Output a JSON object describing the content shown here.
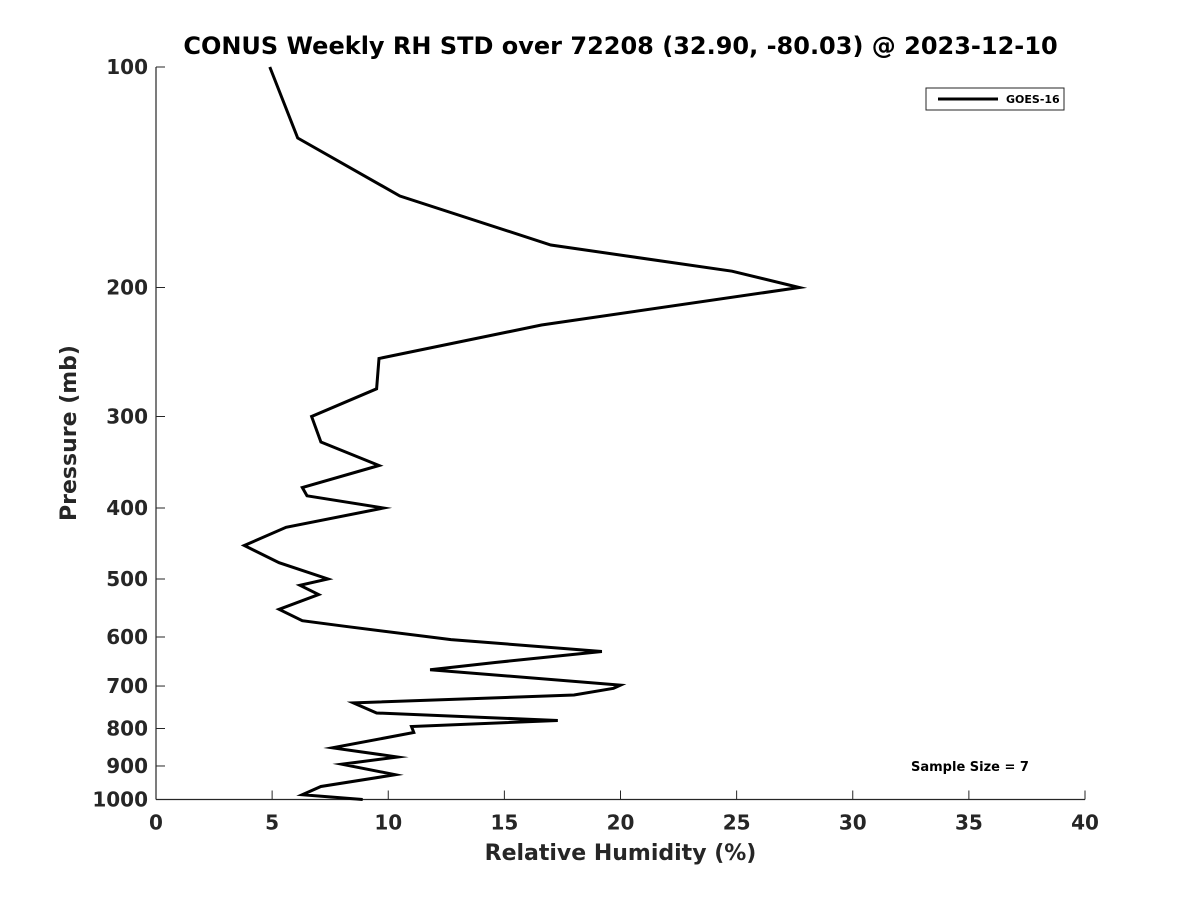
{
  "chart_data": {
    "type": "line",
    "title": "CONUS Weekly RH STD over 72208 (32.90, -80.03) @ 2023-12-10",
    "xlabel": "Relative Humidity (%)",
    "ylabel": "Pressure (mb)",
    "xlim": [
      0,
      40
    ],
    "ylim": [
      100,
      1000
    ],
    "y_scale": "log",
    "y_reversed": true,
    "x_ticks": [
      0,
      5,
      10,
      15,
      20,
      25,
      30,
      35,
      40
    ],
    "y_ticks": [
      100,
      200,
      300,
      400,
      500,
      600,
      700,
      800,
      900,
      1000
    ],
    "grid": false,
    "legend_position": "top-right",
    "annotation": "Sample Size = 7",
    "line_color": "#000000",
    "series": [
      {
        "name": "GOES-16",
        "points": [
          [
            4.9,
            100
          ],
          [
            6.1,
            125
          ],
          [
            10.5,
            150
          ],
          [
            17.0,
            175
          ],
          [
            24.8,
            190
          ],
          [
            27.7,
            200
          ],
          [
            16.6,
            225
          ],
          [
            9.6,
            250
          ],
          [
            9.5,
            275
          ],
          [
            6.7,
            300
          ],
          [
            7.1,
            325
          ],
          [
            9.6,
            350
          ],
          [
            6.3,
            375
          ],
          [
            6.5,
            385
          ],
          [
            9.8,
            400
          ],
          [
            5.6,
            425
          ],
          [
            3.8,
            450
          ],
          [
            5.3,
            475
          ],
          [
            7.4,
            500
          ],
          [
            6.2,
            510
          ],
          [
            7.0,
            525
          ],
          [
            5.3,
            550
          ],
          [
            6.3,
            570
          ],
          [
            8.1,
            580
          ],
          [
            12.7,
            605
          ],
          [
            19.2,
            628
          ],
          [
            14.6,
            650
          ],
          [
            11.8,
            665
          ],
          [
            20.0,
            698
          ],
          [
            19.7,
            705
          ],
          [
            18.0,
            720
          ],
          [
            8.5,
            738
          ],
          [
            9.5,
            762
          ],
          [
            17.3,
            780
          ],
          [
            11.0,
            795
          ],
          [
            11.1,
            810
          ],
          [
            7.6,
            850
          ],
          [
            10.4,
            875
          ],
          [
            8.0,
            895
          ],
          [
            10.3,
            925
          ],
          [
            7.1,
            960
          ],
          [
            6.3,
            985
          ],
          [
            8.9,
            1000
          ]
        ]
      }
    ]
  }
}
